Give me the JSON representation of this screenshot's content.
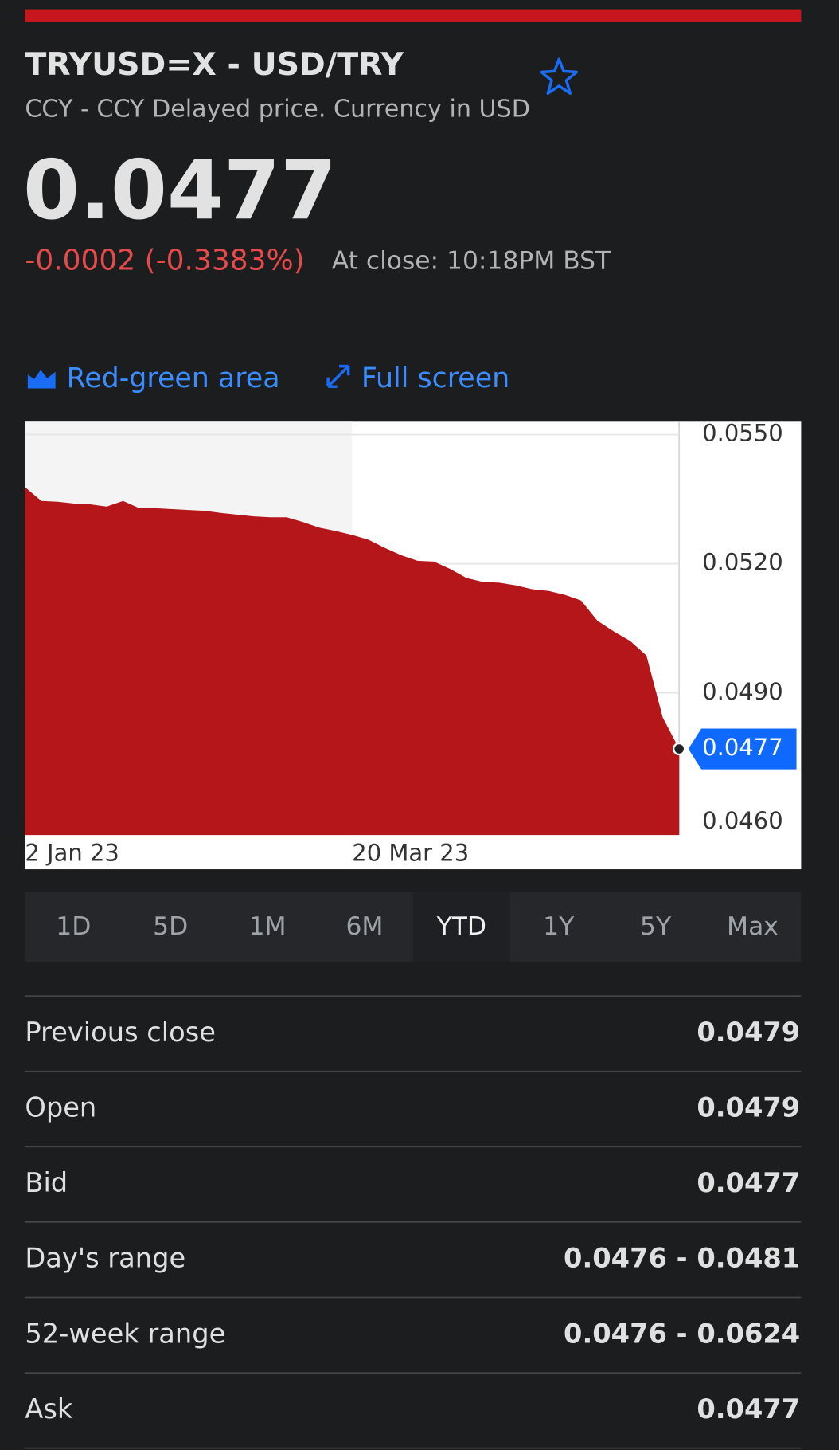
{
  "header": {
    "title": "TRYUSD=X - USD/TRY",
    "subtitle": "CCY - CCY Delayed price. Currency in USD"
  },
  "quote": {
    "price": "0.0477",
    "change": "-0.0002 (-0.3383%)",
    "close_time": "At close: 10:18PM BST"
  },
  "chart_options": [
    "Red-green area",
    "Full screen"
  ],
  "chart_data": {
    "type": "area",
    "color": "#b5161a",
    "categories": [
      "2 Jan 23",
      null,
      null,
      null,
      null,
      null,
      null,
      null,
      null,
      null,
      null,
      null,
      null,
      null,
      null,
      null,
      null,
      null,
      null,
      null,
      "20 Mar 23",
      null,
      null,
      null,
      null,
      null,
      null,
      null,
      null,
      null,
      null,
      null,
      null,
      null,
      null,
      null,
      null,
      null,
      null,
      null,
      null
    ],
    "values": [
      0.05378,
      0.05346,
      0.05344,
      0.0534,
      0.05338,
      0.05333,
      0.05346,
      0.05329,
      0.05329,
      0.05327,
      0.05325,
      0.05323,
      0.05318,
      0.05314,
      0.0531,
      0.05308,
      0.05308,
      0.05297,
      0.05284,
      0.05276,
      0.05267,
      0.05256,
      0.05237,
      0.0522,
      0.05207,
      0.05205,
      0.05188,
      0.05167,
      0.05158,
      0.05156,
      0.0515,
      0.05141,
      0.05137,
      0.05128,
      0.05115,
      0.05068,
      0.05043,
      0.05021,
      0.04987,
      0.04843,
      0.0477
    ],
    "ylim": [
      0.0457,
      0.0553
    ],
    "yticks": [
      {
        "value": 0.055,
        "label": "0.0550"
      },
      {
        "value": 0.052,
        "label": "0.0520"
      },
      {
        "value": 0.049,
        "label": "0.0490"
      },
      {
        "value": 0.046,
        "label": "0.0460"
      }
    ],
    "grid": true
  },
  "periods": [
    "1D",
    "5D",
    "1M",
    "6M",
    "YTD",
    "1Y",
    "5Y",
    "Max"
  ],
  "selected_period": "YTD",
  "stats": [
    {
      "label": "Previous close",
      "value": "0.0479"
    },
    {
      "label": "Open",
      "value": "0.0479"
    },
    {
      "label": "Bid",
      "value": "0.0477"
    },
    {
      "label": "Day's range",
      "value": "0.0476 - 0.0481"
    },
    {
      "label": "52-week range",
      "value": "0.0476 - 0.0624"
    },
    {
      "label": "Ask",
      "value": "0.0477"
    }
  ]
}
